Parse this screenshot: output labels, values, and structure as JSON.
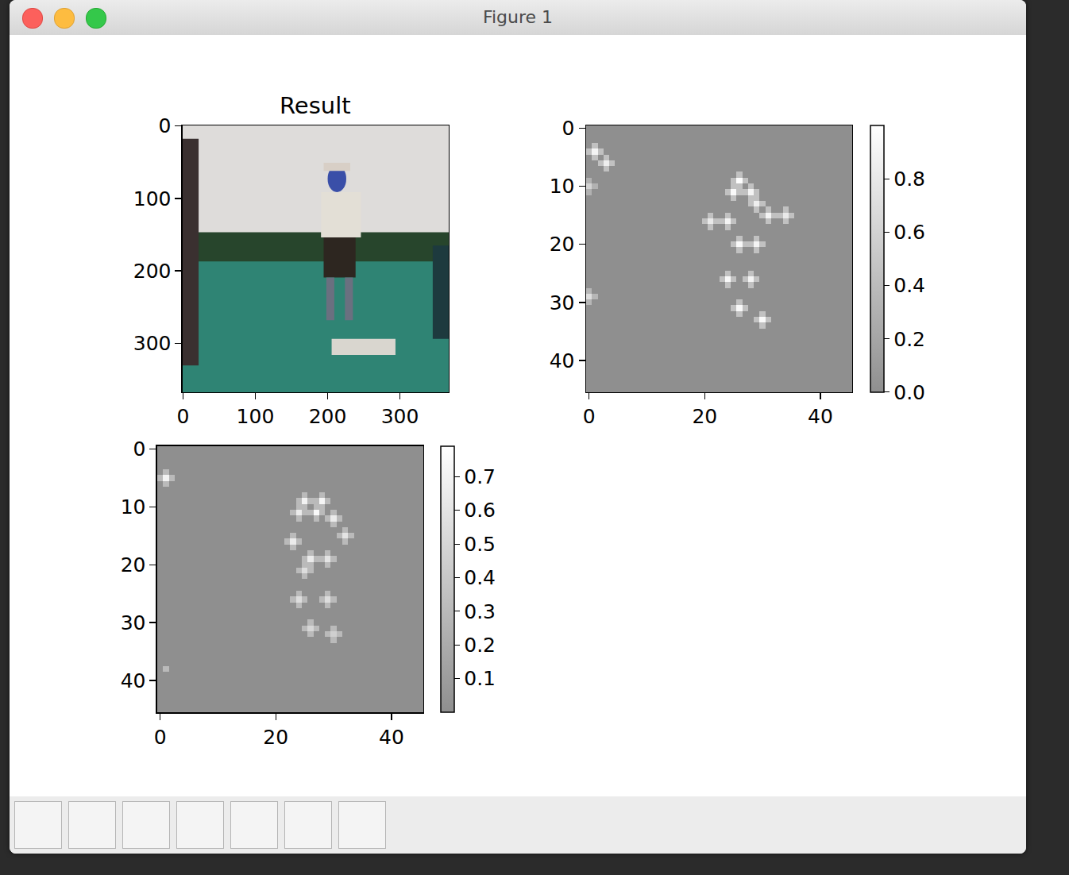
{
  "window": {
    "title": "Figure 1"
  },
  "chart_data": [
    {
      "type": "image",
      "title": "Result",
      "xlim": [
        -0.5,
        367.5
      ],
      "ylim": [
        367.5,
        -0.5
      ],
      "xticks": [
        0,
        100,
        200,
        300
      ],
      "yticks": [
        0,
        100,
        200,
        300
      ]
    },
    {
      "type": "heatmap",
      "xlim": [
        -0.5,
        45.5
      ],
      "ylim": [
        45.5,
        -0.5
      ],
      "xticks": [
        0,
        20,
        40
      ],
      "yticks": [
        0,
        10,
        20,
        30,
        40
      ],
      "shape": [
        46,
        46
      ],
      "fill": 0,
      "zlim": [
        0,
        1.0
      ],
      "colorbar_ticks": [
        {
          "value": 0,
          "label": "0.0"
        },
        0.2,
        0.4,
        0.6,
        0.8
      ],
      "cells": [
        [
          4,
          1,
          0.9
        ],
        [
          3,
          1,
          0.45
        ],
        [
          5,
          1,
          0.45
        ],
        [
          4,
          0,
          0.45
        ],
        [
          4,
          2,
          0.45
        ],
        [
          6,
          3,
          0.85
        ],
        [
          5,
          3,
          0.45
        ],
        [
          7,
          3,
          0.45
        ],
        [
          6,
          2,
          0.45
        ],
        [
          6,
          4,
          0.45
        ],
        [
          10,
          0,
          0.6
        ],
        [
          9,
          0,
          0.3
        ],
        [
          11,
          0,
          0.3
        ],
        [
          10,
          1,
          0.3
        ],
        [
          9,
          26,
          0.98
        ],
        [
          8,
          26,
          0.45
        ],
        [
          10,
          26,
          0.45
        ],
        [
          9,
          25,
          0.45
        ],
        [
          9,
          27,
          0.45
        ],
        [
          11,
          25,
          0.95
        ],
        [
          10,
          25,
          0.45
        ],
        [
          12,
          25,
          0.45
        ],
        [
          11,
          24,
          0.45
        ],
        [
          11,
          26,
          0.45
        ],
        [
          11,
          28,
          0.9
        ],
        [
          10,
          28,
          0.45
        ],
        [
          12,
          28,
          0.45
        ],
        [
          11,
          27,
          0.45
        ],
        [
          11,
          29,
          0.45
        ],
        [
          13,
          29,
          0.85
        ],
        [
          12,
          29,
          0.45
        ],
        [
          14,
          29,
          0.45
        ],
        [
          13,
          28,
          0.45
        ],
        [
          13,
          30,
          0.45
        ],
        [
          15,
          31,
          0.9
        ],
        [
          14,
          31,
          0.45
        ],
        [
          16,
          31,
          0.45
        ],
        [
          15,
          30,
          0.45
        ],
        [
          15,
          32,
          0.45
        ],
        [
          15,
          34,
          0.8
        ],
        [
          14,
          34,
          0.45
        ],
        [
          16,
          34,
          0.45
        ],
        [
          15,
          33,
          0.45
        ],
        [
          15,
          35,
          0.45
        ],
        [
          16,
          24,
          0.9
        ],
        [
          15,
          24,
          0.45
        ],
        [
          17,
          24,
          0.45
        ],
        [
          16,
          23,
          0.45
        ],
        [
          16,
          25,
          0.45
        ],
        [
          16,
          21,
          0.8
        ],
        [
          15,
          21,
          0.45
        ],
        [
          17,
          21,
          0.45
        ],
        [
          16,
          20,
          0.45
        ],
        [
          16,
          22,
          0.45
        ],
        [
          20,
          26,
          0.95
        ],
        [
          19,
          26,
          0.45
        ],
        [
          21,
          26,
          0.45
        ],
        [
          20,
          25,
          0.45
        ],
        [
          20,
          27,
          0.45
        ],
        [
          20,
          29,
          0.9
        ],
        [
          19,
          29,
          0.45
        ],
        [
          21,
          29,
          0.45
        ],
        [
          20,
          28,
          0.45
        ],
        [
          20,
          30,
          0.45
        ],
        [
          26,
          24,
          0.95
        ],
        [
          25,
          24,
          0.45
        ],
        [
          27,
          24,
          0.45
        ],
        [
          26,
          23,
          0.45
        ],
        [
          26,
          25,
          0.45
        ],
        [
          26,
          28,
          0.9
        ],
        [
          25,
          28,
          0.45
        ],
        [
          27,
          28,
          0.45
        ],
        [
          26,
          27,
          0.45
        ],
        [
          26,
          29,
          0.45
        ],
        [
          31,
          26,
          0.95
        ],
        [
          30,
          26,
          0.45
        ],
        [
          32,
          26,
          0.45
        ],
        [
          31,
          25,
          0.45
        ],
        [
          31,
          27,
          0.45
        ],
        [
          33,
          30,
          0.95
        ],
        [
          32,
          30,
          0.45
        ],
        [
          34,
          30,
          0.45
        ],
        [
          33,
          29,
          0.45
        ],
        [
          33,
          31,
          0.45
        ],
        [
          29,
          0,
          0.7
        ],
        [
          28,
          0,
          0.35
        ],
        [
          30,
          0,
          0.35
        ],
        [
          29,
          1,
          0.35
        ]
      ]
    },
    {
      "type": "heatmap",
      "xlim": [
        -0.5,
        45.5
      ],
      "ylim": [
        45.5,
        -0.5
      ],
      "xticks": [
        0,
        20,
        40
      ],
      "yticks": [
        0,
        10,
        20,
        30,
        40
      ],
      "shape": [
        46,
        46
      ],
      "fill": 0,
      "zlim": [
        0,
        0.79
      ],
      "colorbar_ticks": [
        0.1,
        0.2,
        0.3,
        0.4,
        0.5,
        0.6,
        0.7
      ],
      "cells": [
        [
          5,
          1,
          0.7
        ],
        [
          4,
          1,
          0.3
        ],
        [
          6,
          1,
          0.3
        ],
        [
          5,
          0,
          0.3
        ],
        [
          5,
          2,
          0.3
        ],
        [
          9,
          25,
          0.7
        ],
        [
          8,
          25,
          0.3
        ],
        [
          10,
          25,
          0.3
        ],
        [
          9,
          24,
          0.3
        ],
        [
          9,
          26,
          0.3
        ],
        [
          9,
          28,
          0.72
        ],
        [
          8,
          28,
          0.3
        ],
        [
          10,
          28,
          0.3
        ],
        [
          9,
          27,
          0.3
        ],
        [
          9,
          29,
          0.3
        ],
        [
          11,
          24,
          0.65
        ],
        [
          10,
          24,
          0.3
        ],
        [
          12,
          24,
          0.3
        ],
        [
          11,
          23,
          0.3
        ],
        [
          11,
          25,
          0.3
        ],
        [
          11,
          27,
          0.75
        ],
        [
          10,
          27,
          0.3
        ],
        [
          12,
          27,
          0.3
        ],
        [
          11,
          26,
          0.3
        ],
        [
          11,
          28,
          0.3
        ],
        [
          12,
          30,
          0.65
        ],
        [
          11,
          30,
          0.3
        ],
        [
          13,
          30,
          0.3
        ],
        [
          12,
          29,
          0.3
        ],
        [
          12,
          31,
          0.3
        ],
        [
          16,
          23,
          0.65
        ],
        [
          15,
          23,
          0.3
        ],
        [
          17,
          23,
          0.3
        ],
        [
          16,
          22,
          0.3
        ],
        [
          16,
          24,
          0.3
        ],
        [
          15,
          32,
          0.6
        ],
        [
          14,
          32,
          0.3
        ],
        [
          16,
          32,
          0.3
        ],
        [
          15,
          31,
          0.3
        ],
        [
          15,
          33,
          0.3
        ],
        [
          19,
          26,
          0.65
        ],
        [
          18,
          26,
          0.3
        ],
        [
          20,
          26,
          0.3
        ],
        [
          19,
          25,
          0.3
        ],
        [
          19,
          27,
          0.3
        ],
        [
          19,
          29,
          0.6
        ],
        [
          18,
          29,
          0.3
        ],
        [
          20,
          29,
          0.3
        ],
        [
          19,
          28,
          0.3
        ],
        [
          19,
          30,
          0.3
        ],
        [
          21,
          25,
          0.55
        ],
        [
          20,
          25,
          0.3
        ],
        [
          22,
          25,
          0.3
        ],
        [
          21,
          24,
          0.3
        ],
        [
          21,
          26,
          0.3
        ],
        [
          26,
          24,
          0.55
        ],
        [
          25,
          24,
          0.3
        ],
        [
          27,
          24,
          0.3
        ],
        [
          26,
          23,
          0.3
        ],
        [
          26,
          25,
          0.3
        ],
        [
          26,
          29,
          0.55
        ],
        [
          25,
          29,
          0.3
        ],
        [
          27,
          29,
          0.3
        ],
        [
          26,
          28,
          0.3
        ],
        [
          26,
          30,
          0.3
        ],
        [
          31,
          26,
          0.5
        ],
        [
          30,
          26,
          0.3
        ],
        [
          32,
          26,
          0.3
        ],
        [
          31,
          25,
          0.3
        ],
        [
          31,
          27,
          0.3
        ],
        [
          32,
          30,
          0.45
        ],
        [
          31,
          30,
          0.3
        ],
        [
          33,
          30,
          0.3
        ],
        [
          32,
          29,
          0.3
        ],
        [
          32,
          31,
          0.3
        ],
        [
          38,
          1,
          0.3
        ]
      ]
    }
  ]
}
